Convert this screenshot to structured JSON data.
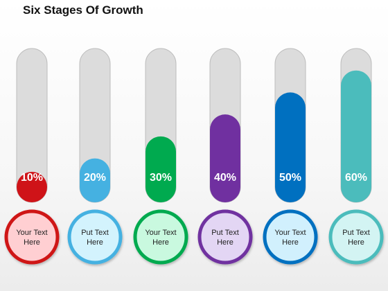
{
  "title": "Six Stages Of Growth",
  "chart_data": {
    "type": "bar",
    "title": "Six Stages Of Growth",
    "ylim": [
      0,
      70
    ],
    "values": [
      10,
      20,
      30,
      40,
      50,
      60
    ],
    "value_labels": [
      "10%",
      "20%",
      "30%",
      "40%",
      "50%",
      "60%"
    ],
    "captions": [
      [
        "Your Text",
        "Here"
      ],
      [
        "Put Text",
        "Here"
      ],
      [
        "Your Text",
        "Here"
      ],
      [
        "Put Text",
        "Here"
      ],
      [
        "Your Text",
        "Here"
      ],
      [
        "Put Text",
        "Here"
      ]
    ],
    "colors": {
      "bars": [
        "#cf1318",
        "#45b1e1",
        "#00aa4f",
        "#7030a0",
        "#0070c0",
        "#4bbcbc"
      ],
      "circle_fills": [
        "#ffcfd2",
        "#d3f3fd",
        "#c9f9df",
        "#e3d6f4",
        "#d1f0fd",
        "#d3f4f3"
      ],
      "circle_borders": [
        "#cf1318",
        "#45b1e1",
        "#00aa4f",
        "#7030a0",
        "#0070c0",
        "#4bbcbc"
      ],
      "track": "#dcdcdc",
      "track_border": "#bdbdbd"
    }
  }
}
